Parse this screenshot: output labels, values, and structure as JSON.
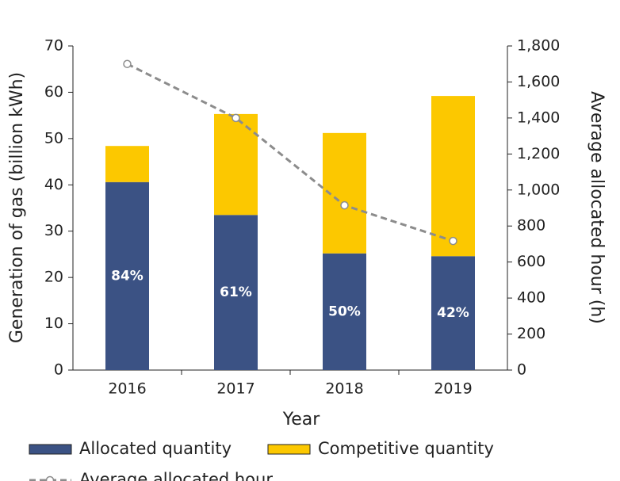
{
  "chart_data": {
    "type": "bar",
    "categories": [
      "2016",
      "2017",
      "2018",
      "2019"
    ],
    "x_label": "Year",
    "y_label": "Generation of gas (billion kWh)",
    "y2_label": "Average allocated hour (h)",
    "series": [
      {
        "name": "Allocated quantity",
        "color": "#3b5284",
        "values": [
          40.6,
          33.5,
          25.2,
          24.6
        ],
        "labels": [
          "84%",
          "61%",
          "50%",
          "42%"
        ]
      },
      {
        "name": "Competitive quantity",
        "color": "#fcc800",
        "values": [
          7.8,
          21.8,
          26.0,
          34.6
        ]
      },
      {
        "name": "Average allocated hour",
        "color": "#8c8c8c",
        "axis": "y2",
        "type": "line",
        "values": [
          1700,
          1400,
          915,
          717
        ]
      }
    ],
    "stacked": true,
    "ylim": [
      0,
      70
    ],
    "yticks": [
      0,
      10,
      20,
      30,
      40,
      50,
      60,
      70
    ],
    "y2lim": [
      0,
      1800
    ],
    "y2ticks": [
      0,
      200,
      400,
      600,
      800,
      {
        "value": 1000,
        "label": "1,000"
      },
      {
        "value": 1200,
        "label": "1,200"
      },
      {
        "value": 1400,
        "label": "1,400"
      },
      {
        "value": 1600,
        "label": "1,600"
      },
      {
        "value": 1800,
        "label": "1,800"
      }
    ],
    "legend": "bottom"
  }
}
